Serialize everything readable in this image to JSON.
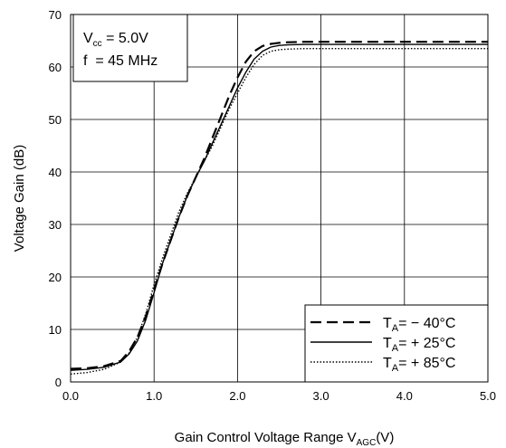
{
  "chart_data": {
    "type": "line",
    "xlabel": "Gain Control Voltage Range V",
    "xlabel_sub": "AGC",
    "xlabel_suffix": "(V)",
    "ylabel": "Voltage Gain (dB)",
    "xlim": [
      0.0,
      5.0
    ],
    "ylim": [
      0,
      70
    ],
    "xticks": [
      "0.0",
      "1.0",
      "2.0",
      "3.0",
      "4.0",
      "5.0"
    ],
    "yticks": [
      "0",
      "10",
      "20",
      "30",
      "40",
      "50",
      "60",
      "70"
    ],
    "grid": true,
    "legend_position": "bottom-right",
    "annotation": {
      "line1_prefix": "V",
      "line1_sub": "cc",
      "line1_suffix": " = 5.0V",
      "line2": "f  = 45 MHz"
    },
    "series": [
      {
        "name": "TA= − 40°C",
        "name_prefix": "T",
        "name_sub": "A",
        "name_suffix": "= − 40°C",
        "style": "dashed",
        "x": [
          0.0,
          0.2,
          0.4,
          0.6,
          0.7,
          0.8,
          0.9,
          1.0,
          1.1,
          1.2,
          1.3,
          1.4,
          1.5,
          1.6,
          1.7,
          1.8,
          1.9,
          2.0,
          2.1,
          2.2,
          2.3,
          2.4,
          2.5,
          2.6,
          2.8,
          3.0,
          3.5,
          4.0,
          4.5,
          5.0
        ],
        "y": [
          2.5,
          2.6,
          3.0,
          4.0,
          5.8,
          8.5,
          12.5,
          17.5,
          22.5,
          27.0,
          31.5,
          35.5,
          39.0,
          42.5,
          46.5,
          50.5,
          54.5,
          58.0,
          61.0,
          63.0,
          64.0,
          64.4,
          64.6,
          64.7,
          64.8,
          64.8,
          64.8,
          64.8,
          64.8,
          64.8
        ]
      },
      {
        "name": "TA= + 25°C",
        "name_prefix": "T",
        "name_sub": "A",
        "name_suffix": "= + 25°C",
        "style": "solid",
        "x": [
          0.0,
          0.2,
          0.4,
          0.6,
          0.7,
          0.8,
          0.9,
          1.0,
          1.1,
          1.2,
          1.3,
          1.4,
          1.5,
          1.6,
          1.7,
          1.8,
          1.9,
          2.0,
          2.1,
          2.2,
          2.3,
          2.4,
          2.5,
          2.6,
          2.8,
          3.0,
          3.5,
          4.0,
          4.5,
          5.0
        ],
        "y": [
          2.2,
          2.4,
          2.8,
          3.8,
          5.3,
          7.8,
          11.8,
          17.0,
          22.5,
          27.0,
          31.5,
          35.5,
          39.0,
          42.0,
          45.5,
          49.0,
          52.5,
          56.0,
          59.0,
          61.5,
          63.0,
          63.8,
          64.1,
          64.2,
          64.3,
          64.3,
          64.3,
          64.3,
          64.3,
          64.3
        ]
      },
      {
        "name": "TA= + 85°C",
        "name_prefix": "T",
        "name_sub": "A",
        "name_suffix": "= + 85°C",
        "style": "dotted",
        "x": [
          0.0,
          0.2,
          0.4,
          0.6,
          0.7,
          0.8,
          0.9,
          1.0,
          1.1,
          1.2,
          1.3,
          1.4,
          1.5,
          1.6,
          1.7,
          1.8,
          1.9,
          2.0,
          2.1,
          2.2,
          2.3,
          2.4,
          2.5,
          2.6,
          2.8,
          3.0,
          3.5,
          4.0,
          4.5,
          5.0
        ],
        "y": [
          1.5,
          1.8,
          2.4,
          3.8,
          5.5,
          8.5,
          13.0,
          18.5,
          23.5,
          28.0,
          32.5,
          36.0,
          39.0,
          42.0,
          45.0,
          48.5,
          52.0,
          55.0,
          58.0,
          60.5,
          62.2,
          63.0,
          63.3,
          63.4,
          63.5,
          63.5,
          63.5,
          63.5,
          63.5,
          63.5
        ]
      }
    ]
  }
}
